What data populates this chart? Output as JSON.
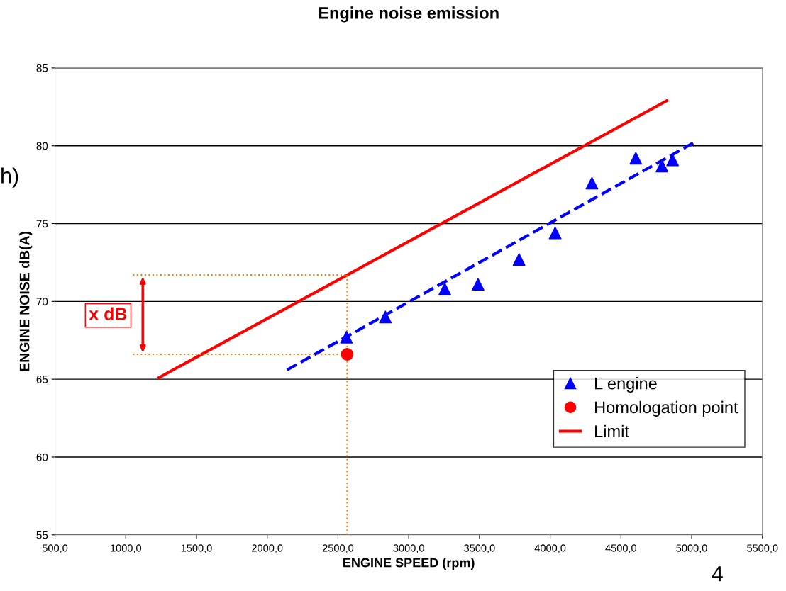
{
  "chart_data": {
    "type": "scatter",
    "title": "Engine noise emission",
    "xlabel": "ENGINE SPEED (rpm)",
    "ylabel": "ENGINE NOISE dB(A)",
    "xlim": [
      500,
      5500
    ],
    "xticks": [
      {
        "value": 500,
        "label": "500,0"
      },
      {
        "value": 1000,
        "label": "1000,0"
      },
      {
        "value": 1500,
        "label": "1500,0"
      },
      {
        "value": 2000,
        "label": "2000,0"
      },
      {
        "value": 2500,
        "label": "2500,0"
      },
      {
        "value": 3000,
        "label": "3000,0"
      },
      {
        "value": 3500,
        "label": "3500,0"
      },
      {
        "value": 4000,
        "label": "4000,0"
      },
      {
        "value": 4500,
        "label": "4500,0"
      },
      {
        "value": 5000,
        "label": "5000,0"
      },
      {
        "value": 5500,
        "label": "5500,0"
      }
    ],
    "ylim": [
      55,
      85
    ],
    "yticks": [
      55,
      60,
      65,
      70,
      75,
      80,
      85
    ],
    "grid": "y",
    "legend": "bottom right",
    "series": [
      {
        "name": "L engine",
        "marker": "triangle",
        "color": "#0000ff",
        "x": [
          2560,
          2835,
          3255,
          3490,
          3780,
          4035,
          4295,
          4605,
          4790,
          4865
        ],
        "values": [
          67.7,
          69.0,
          70.8,
          71.1,
          72.7,
          74.4,
          77.6,
          79.2,
          78.7,
          79.1
        ]
      },
      {
        "type": "line",
        "line_style": "dashed",
        "color": "#0000ff",
        "x": [
          2140,
          5035
        ],
        "values": [
          65.6,
          80.3
        ]
      },
      {
        "name": "Homologation point",
        "marker": "circle",
        "color": "#ff0000",
        "x": [
          2565
        ],
        "values": [
          66.6
        ]
      },
      {
        "name": "Limit",
        "type": "line",
        "line_style": "solid",
        "color": "#ff0000",
        "x": [
          1234,
          4825
        ],
        "values": [
          65.1,
          82.9
        ]
      },
      {
        "type": "line",
        "line_style": "dotted",
        "color": "#ff8000",
        "x": [
          1050,
          2565
        ],
        "values": [
          71.7,
          71.7
        ]
      },
      {
        "type": "line",
        "line_style": "dotted",
        "color": "#ff8000",
        "x": [
          1050,
          2565
        ],
        "values": [
          66.6,
          66.6
        ]
      },
      {
        "type": "line",
        "line_style": "dotted",
        "color": "#ff8000",
        "x": [
          2565,
          2565
        ],
        "values": [
          55,
          71.7
        ]
      }
    ],
    "annotations": [
      "x dB",
      "h)",
      "4"
    ]
  }
}
